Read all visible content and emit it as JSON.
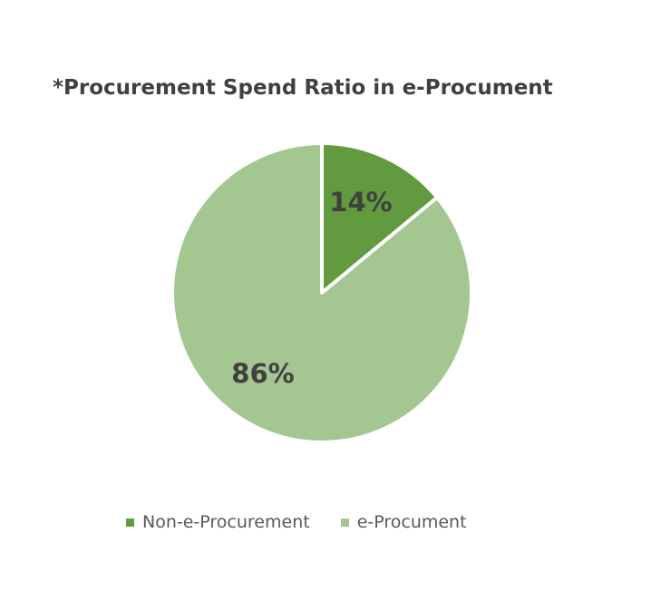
{
  "chart_data": {
    "type": "pie",
    "title": "*Procurement Spend Ratio in e-Procument",
    "categories": [
      "Non-e-Procurement",
      "e-Procument"
    ],
    "values": [
      14,
      86
    ],
    "data_labels": [
      "14%",
      "86%"
    ],
    "colors": [
      "#629a3f",
      "#a4c691"
    ],
    "legend_position": "bottom",
    "start_angle_deg": 0,
    "direction": "clockwise"
  }
}
